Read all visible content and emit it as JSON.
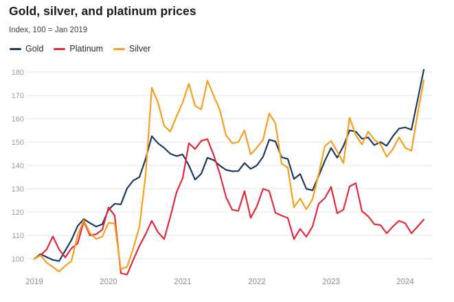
{
  "header": {
    "title": "Gold, silver, and platinum prices",
    "subtitle": "Index, 100 = Jan 2019"
  },
  "legend": [
    {
      "label": "Gold",
      "color": "#1a3a5c"
    },
    {
      "label": "Platinum",
      "color": "#e2293b"
    },
    {
      "label": "Silver",
      "color": "#f89e1b"
    }
  ],
  "chart_data": {
    "type": "line",
    "title": "Gold, silver, and platinum prices",
    "subtitle": "Index, 100 = Jan 2019",
    "x_unit": "month",
    "x_start": "2019-01",
    "x_end": "2024-04",
    "x_tick_labels": [
      "2019",
      "2020",
      "2021",
      "2022",
      "2023",
      "2024"
    ],
    "y_ticks": [
      100,
      110,
      120,
      130,
      140,
      150,
      160,
      170,
      180
    ],
    "ylim": [
      92,
      183
    ],
    "grid": "horizontal-only",
    "legend_position": "top-left",
    "grid_color": "#e6e6e6",
    "tick_color": "#9b9b9b",
    "series": [
      {
        "name": "Gold",
        "color": "#1a3a5c",
        "values": [
          100,
          102,
          100.7,
          99.5,
          99,
          103.5,
          108,
          114,
          117,
          115.3,
          113.8,
          114.8,
          121,
          123.6,
          123.3,
          130.2,
          133.5,
          135,
          142.8,
          152.5,
          149.5,
          147.5,
          145,
          144,
          144.7,
          140,
          133.9,
          136.4,
          143.3,
          142.3,
          139.9,
          138.1,
          137.5,
          137.6,
          141,
          138.5,
          140,
          143.7,
          151,
          150.3,
          143.5,
          142.8,
          134.2,
          136.3,
          130,
          129.3,
          135.5,
          142,
          147.5,
          143.3,
          148.3,
          155,
          154.5,
          151.4,
          152,
          148.7,
          150,
          148.4,
          152.5,
          155.8,
          156.3,
          155.3,
          168,
          181
        ]
      },
      {
        "name": "Platinum",
        "color": "#e2293b",
        "values": [
          100,
          101.5,
          104,
          109.6,
          104,
          100.6,
          104.5,
          106.5,
          116,
          110,
          110.5,
          112.5,
          122,
          118.5,
          93.8,
          93.2,
          99.5,
          105.5,
          110.5,
          116.3,
          111.4,
          108.4,
          118,
          128.5,
          134.5,
          149.5,
          147,
          150.5,
          151.3,
          144.5,
          136.5,
          126.5,
          121,
          120.5,
          129,
          117.5,
          122.5,
          130,
          129,
          119.7,
          118.5,
          117.5,
          108.4,
          112.8,
          109.4,
          113.8,
          123.6,
          126,
          130.8,
          119.5,
          121,
          131,
          132.4,
          120.4,
          118.2,
          114.8,
          114.4,
          110.9,
          113.8,
          116.3,
          115.2,
          110.9,
          113.8,
          116.8
        ]
      },
      {
        "name": "Silver",
        "color": "#f89e1b",
        "values": [
          100,
          101.5,
          98.3,
          96.5,
          94.5,
          97,
          99,
          110,
          116.5,
          111,
          108.5,
          109.5,
          115.4,
          115.1,
          95.5,
          96.5,
          104.4,
          113.7,
          135.8,
          173.3,
          167,
          157,
          154.5,
          161,
          167,
          175,
          165.5,
          164,
          176.3,
          170,
          163.8,
          153,
          149.5,
          150,
          155,
          144.7,
          147.6,
          151,
          162.3,
          158,
          140.8,
          139,
          122.1,
          125.8,
          121.2,
          125.5,
          136.3,
          148.3,
          150.5,
          146,
          141,
          160.5,
          153,
          149,
          154.5,
          151,
          149,
          143.7,
          147,
          152.1,
          147.6,
          146.2,
          162,
          176.5
        ]
      }
    ]
  }
}
